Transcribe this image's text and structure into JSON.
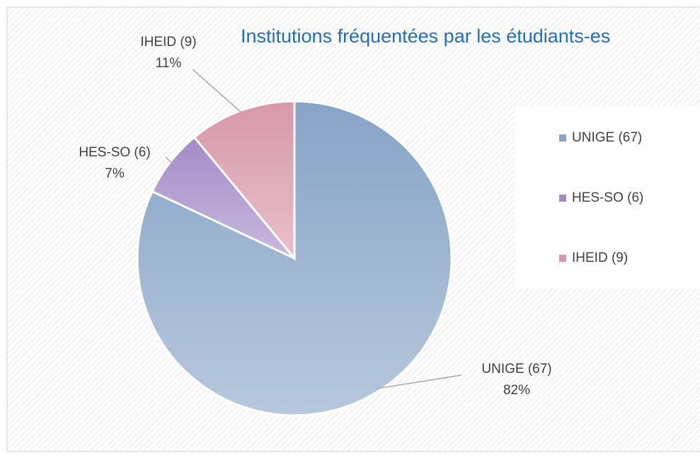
{
  "chart_data": {
    "type": "pie",
    "title": "Institutions fréquentées par les étudiants-es",
    "categories": [
      "UNIGE (67)",
      "HES-SO (6)",
      "IHEID (9)"
    ],
    "values": [
      82,
      7,
      11
    ],
    "value_labels": [
      "82%",
      "7%",
      "11%"
    ],
    "colors": [
      "#87a3c7",
      "#a38bc8",
      "#d897a9"
    ],
    "legend": "right"
  }
}
